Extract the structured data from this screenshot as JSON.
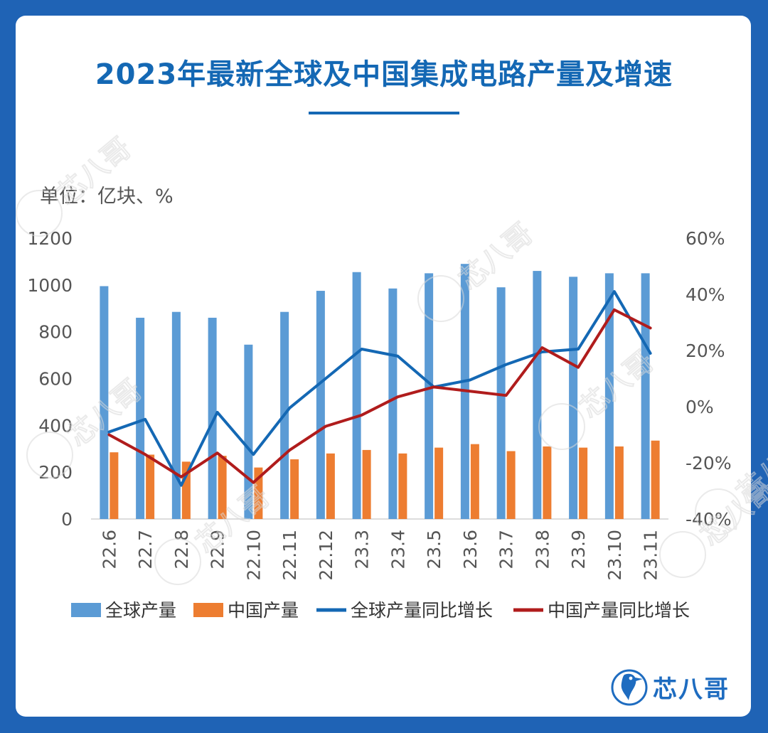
{
  "title": "2023年最新全球及中国集成电路产量及增速",
  "unit_label": "单位：亿块、%",
  "brand": {
    "name": "芯八哥",
    "watermark": "芯八哥"
  },
  "colors": {
    "global_bar": "#5b9bd5",
    "china_bar": "#ed7d31",
    "global_line": "#1468b4",
    "china_line": "#b01c1c",
    "title": "#1468b4",
    "frame": "#1f63b5"
  },
  "chart_data": {
    "type": "bar",
    "title": "2023年最新全球及中国集成电路产量及增速",
    "categories": [
      "22.6",
      "22.7",
      "22.8",
      "22.9",
      "22.10",
      "22.11",
      "22.12",
      "23.3",
      "23.4",
      "23.5",
      "23.6",
      "23.7",
      "23.8",
      "23.9",
      "23.10",
      "23.11"
    ],
    "y_left": {
      "ticks": [
        "0",
        "200",
        "400",
        "600",
        "800",
        "1000",
        "1200"
      ],
      "range": [
        0,
        1200
      ]
    },
    "y_right": {
      "ticks": [
        "-40%",
        "-20%",
        "0%",
        "20%",
        "40%",
        "60%"
      ],
      "range": [
        -40,
        60
      ]
    },
    "series": [
      {
        "name": "全球产量",
        "type": "bar",
        "axis": "left",
        "values": [
          995,
          860,
          885,
          860,
          745,
          885,
          975,
          1055,
          985,
          1050,
          1090,
          990,
          1060,
          1035,
          1050,
          1050
        ]
      },
      {
        "name": "中国产量",
        "type": "bar",
        "axis": "left",
        "values": [
          285,
          275,
          245,
          270,
          220,
          255,
          280,
          295,
          280,
          305,
          320,
          290,
          310,
          305,
          310,
          335
        ]
      },
      {
        "name": "全球产量同比增长",
        "type": "line",
        "axis": "right",
        "values": [
          -9,
          -4.5,
          -28,
          -2,
          -17,
          -0.5,
          10,
          20.5,
          18,
          7,
          9.5,
          15,
          19.5,
          20.5,
          41,
          19
        ]
      },
      {
        "name": "中国产量同比增长",
        "type": "line",
        "axis": "right",
        "values": [
          -10,
          -17,
          -25,
          -16.5,
          -27,
          -15.5,
          -7,
          -3,
          3.5,
          7,
          5.5,
          4,
          21,
          14,
          34.5,
          28
        ]
      }
    ],
    "legend": [
      "全球产量",
      "中国产量",
      "全球产量同比增长",
      "中国产量同比增长"
    ],
    "legend_position": "bottom"
  }
}
